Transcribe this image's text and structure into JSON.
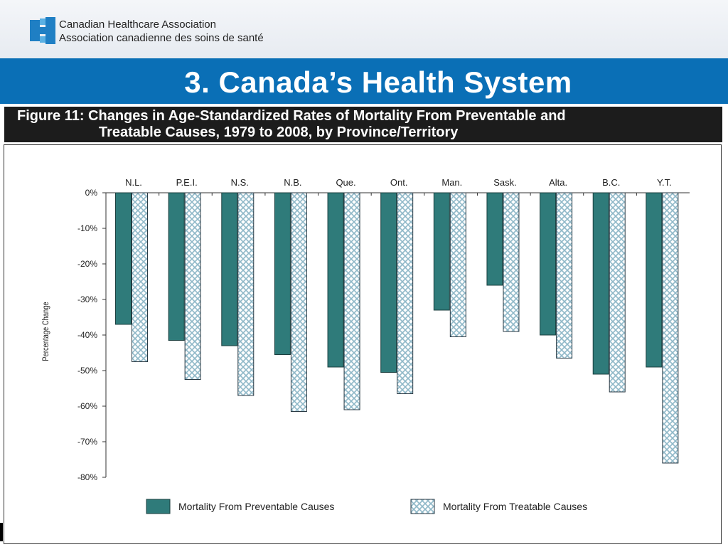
{
  "header": {
    "logo_icon": "canadian-healthcare-association-logo",
    "org_name_en": "Canadian Healthcare Association",
    "org_name_fr": "Association canadienne des soins de santé"
  },
  "slide": {
    "title": "3. Canada’s Health System",
    "figure_title_line1": "Figure 11: Changes in Age-Standardized Rates of Mortality From Preventable and",
    "figure_title_line2": "Treatable Causes, 1979 to 2008, by Province/Territory"
  },
  "colors": {
    "title_bar": "#0a6fb6",
    "preventable": "#2f7b7a",
    "treatable_hatch": "#8fb8c8"
  },
  "chart_data": {
    "type": "bar",
    "categories": [
      "N.L.",
      "P.E.I.",
      "N.S.",
      "N.B.",
      "Que.",
      "Ont.",
      "Man.",
      "Sask.",
      "Alta.",
      "B.C.",
      "Y.T."
    ],
    "series": [
      {
        "name": "Mortality From Preventable Causes",
        "values": [
          -37,
          -41.5,
          -43,
          -45.5,
          -49,
          -50.5,
          -33,
          -26,
          -40,
          -51,
          -49
        ]
      },
      {
        "name": "Mortality From Treatable Causes",
        "values": [
          -47.5,
          -52.5,
          -57,
          -61.5,
          -61,
          -56.5,
          -40.5,
          -39,
          -46.5,
          -56,
          -76
        ]
      }
    ],
    "ylabel": "Percentage Change",
    "ylim": [
      -80,
      0
    ],
    "yticks": [
      0,
      -10,
      -20,
      -30,
      -40,
      -50,
      -60,
      -70,
      -80
    ],
    "ytick_labels": [
      "0%",
      "-10%",
      "-20%",
      "-30%",
      "-40%",
      "-50%",
      "-60%",
      "-70%",
      "-80%"
    ],
    "category_axis_position": "top",
    "legend_position": "bottom"
  }
}
